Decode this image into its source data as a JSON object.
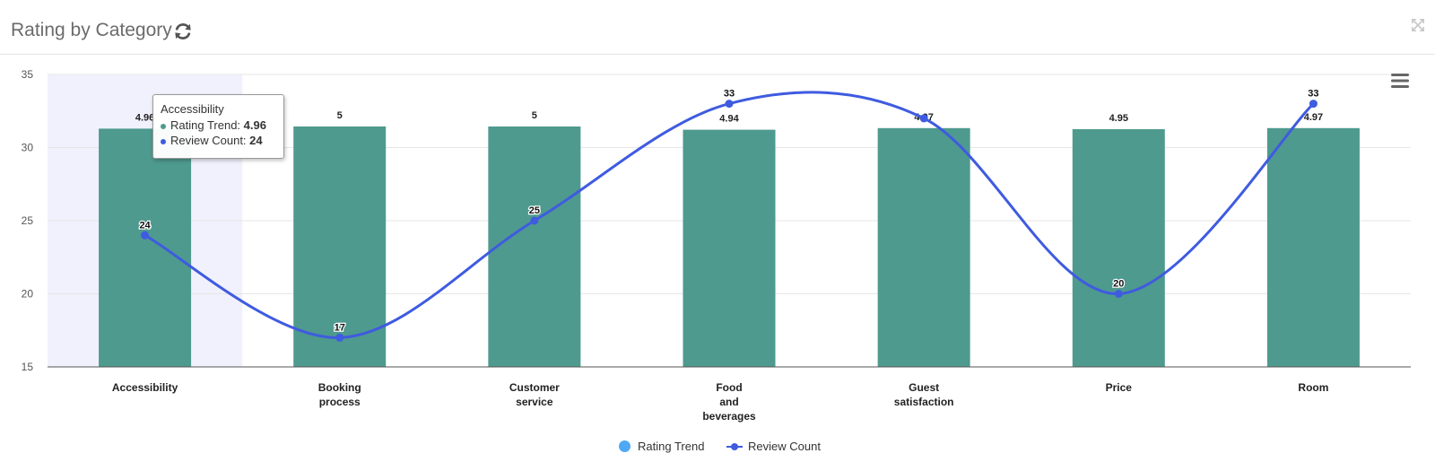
{
  "header": {
    "title": "Rating by Category",
    "refresh_icon": "refresh-icon",
    "expand_icon": "expand-icon"
  },
  "menu_icon": "hamburger-menu-icon",
  "colors": {
    "bar": "#4e9a8e",
    "line": "#3f5be0",
    "legend_rating": "#4fa8f5",
    "highlight": "#f1f1fd",
    "grid": "#e6e6e6",
    "axis": "#555555"
  },
  "chart_data": {
    "type": "bar",
    "categories": [
      "Accessibility",
      "Booking process",
      "Customer service",
      "Food and beverages",
      "Guest satisfaction",
      "Price",
      "Room"
    ],
    "category_lines": [
      [
        "Accessibility"
      ],
      [
        "Booking",
        "process"
      ],
      [
        "Customer",
        "service"
      ],
      [
        "Food",
        "and",
        "beverages"
      ],
      [
        "Guest",
        "satisfaction"
      ],
      [
        "Price"
      ],
      [
        "Room"
      ]
    ],
    "series": [
      {
        "name": "Rating Trend",
        "type": "bar",
        "values": [
          4.96,
          5,
          5,
          4.94,
          4.97,
          4.95,
          4.97
        ],
        "labels": [
          "4.96",
          "5",
          "5",
          "4.94",
          "4.97",
          "4.95",
          "4.97"
        ]
      },
      {
        "name": "Review Count",
        "type": "line",
        "values": [
          24,
          17,
          25,
          33,
          32,
          20,
          33
        ],
        "labels": [
          "24",
          "17",
          "25",
          "33",
          "",
          "20",
          "33"
        ]
      }
    ],
    "ylim": [
      15,
      35
    ],
    "yticks": [
      "15",
      "20",
      "25",
      "30",
      "35"
    ],
    "grid": true,
    "legend_position": "bottom-center"
  },
  "legend": [
    {
      "label": "Rating Trend",
      "color": "#4fa8f5"
    },
    {
      "label": "Review Count",
      "color": "#3f5be0"
    }
  ],
  "tooltip": {
    "title": "Accessibility",
    "rows": [
      {
        "label": "Rating Trend:",
        "value": "4.96",
        "color": "#4e9a8e"
      },
      {
        "label": "Review Count:",
        "value": "24",
        "color": "#3f5be0"
      }
    ]
  }
}
